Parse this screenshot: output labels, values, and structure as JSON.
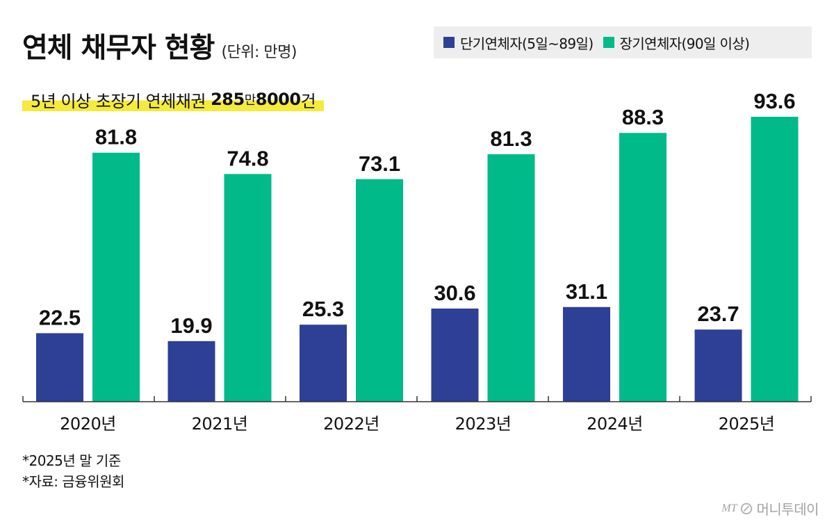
{
  "header": {
    "title": "연체 채무자 현황",
    "unit": "(단위: 만명)"
  },
  "subtitle": {
    "prefix": "5년 이상 초장기 연체채권 ",
    "num1": "285",
    "mid": "만",
    "num2": "8000",
    "suffix": "건"
  },
  "legend": [
    {
      "label": "단기연체자(5일~89일)",
      "color": "#2e3f96"
    },
    {
      "label": "장기연체자(90일 이상)",
      "color": "#00ba8a"
    }
  ],
  "notes": {
    "line1": "*2025년 말 기준",
    "line2": "*자료: 금융위원회"
  },
  "brand": {
    "mt": "MT",
    "name": "머니투데이"
  },
  "chart_data": {
    "type": "bar",
    "title": "연체 채무자 현황",
    "ylabel": "(단위: 만명)",
    "xlabel": "",
    "categories": [
      "2020년",
      "2021년",
      "2022년",
      "2023년",
      "2024년",
      "2025년"
    ],
    "series": [
      {
        "name": "단기연체자(5일~89일)",
        "color": "#2e3f96",
        "values": [
          22.5,
          19.9,
          25.3,
          30.6,
          31.1,
          23.7
        ]
      },
      {
        "name": "장기연체자(90일 이상)",
        "color": "#00ba8a",
        "values": [
          81.8,
          74.8,
          73.1,
          81.3,
          88.3,
          93.6
        ]
      }
    ],
    "ylim": [
      0,
      100
    ],
    "grid": false,
    "legend_position": "top-right"
  }
}
